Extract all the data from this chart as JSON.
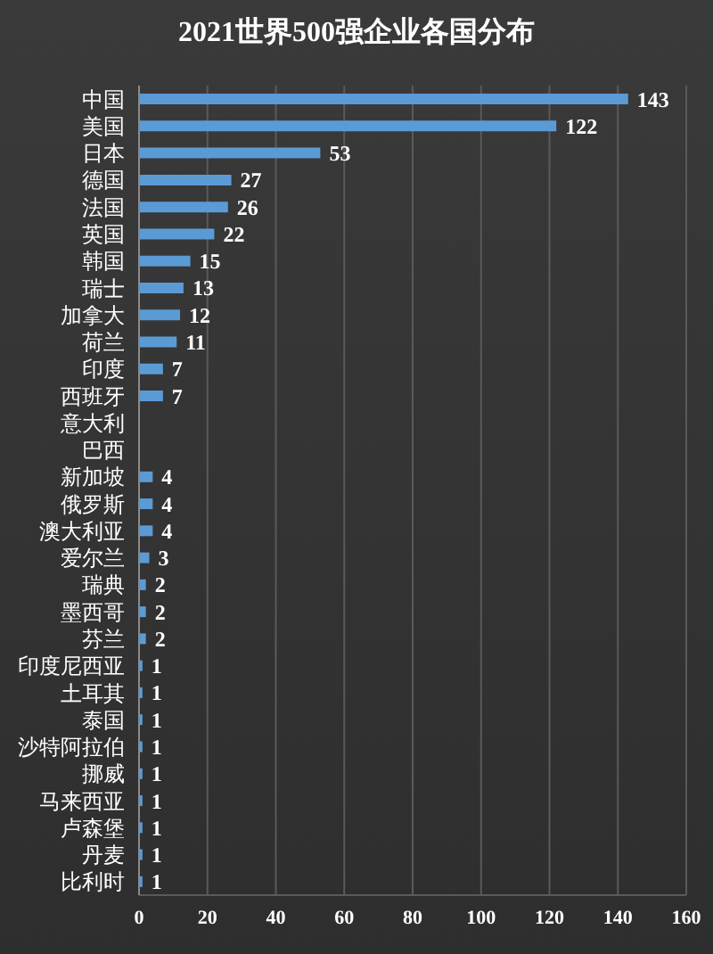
{
  "chart_data": {
    "type": "bar",
    "orientation": "horizontal",
    "title": "2021世界500强企业各国分布",
    "categories": [
      "中国",
      "美国",
      "日本",
      "德国",
      "法国",
      "英国",
      "韩国",
      "瑞士",
      "加拿大",
      "荷兰",
      "印度",
      "西班牙",
      "意大利",
      "巴西",
      "新加坡",
      "俄罗斯",
      "澳大利亚",
      "爱尔兰",
      "瑞典",
      "墨西哥",
      "芬兰",
      "印度尼西亚",
      "土耳其",
      "泰国",
      "沙特阿拉伯",
      "挪威",
      "马来西亚",
      "卢森堡",
      "丹麦",
      "比利时"
    ],
    "values": [
      143,
      122,
      53,
      27,
      26,
      22,
      15,
      13,
      12,
      11,
      7,
      7,
      null,
      null,
      4,
      4,
      4,
      3,
      2,
      2,
      2,
      1,
      1,
      1,
      1,
      1,
      1,
      1,
      1,
      1
    ],
    "color": "#5b9bd5",
    "xlim": [
      0,
      160
    ],
    "xticks": [
      0,
      20,
      40,
      60,
      80,
      100,
      120,
      140,
      160
    ],
    "grid": "x",
    "data_labels": true,
    "legend": false
  }
}
